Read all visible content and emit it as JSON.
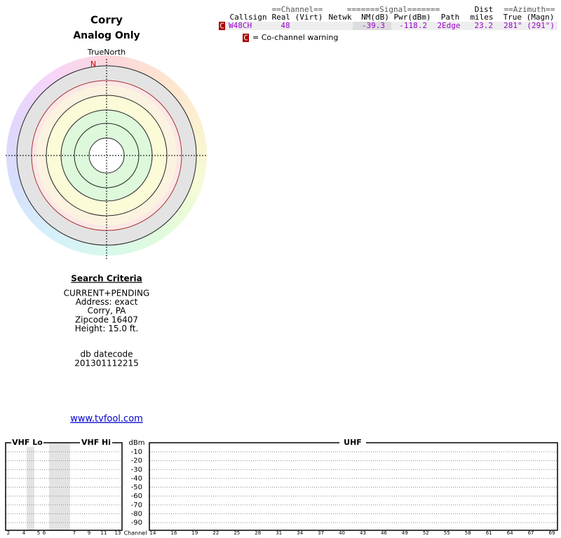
{
  "header": {
    "title": "Corry",
    "subtitle": "Analog Only"
  },
  "compass": {
    "label": "TrueNorth",
    "north": "N"
  },
  "table": {
    "group_headers": [
      "==Channel==",
      "=======Signal=======",
      "Dist",
      "==Azimuth=="
    ],
    "columns": [
      "Callsign",
      "Real (Virt)",
      "Netwk",
      "NM(dB)",
      "Pwr(dBm)",
      "Path",
      "miles",
      "True (Magn)"
    ],
    "rows": [
      {
        "flag": "C",
        "callsign": "W48CH",
        "real": 48,
        "nm": -39.3,
        "pwr": -118.2,
        "path": "2Edge",
        "dist": 23.2,
        "azimuth": "281° (291°)"
      }
    ]
  },
  "legend": {
    "flag": "C",
    "text": "= Co-channel warning"
  },
  "search": {
    "title": "Search Criteria",
    "lines": [
      "CURRENT+PENDING",
      "Address: exact",
      "Corry, PA",
      "Zipcode 16407",
      "Height: 15.0 ft."
    ],
    "datecode_label": "db datecode",
    "datecode": "201301112215"
  },
  "link": "www.tvfool.com",
  "spectrum": {
    "bands": [
      "VHF Lo",
      "VHF Hi",
      "UHF"
    ],
    "unit": "dBm",
    "yticks": [
      -10,
      -20,
      -30,
      -40,
      -50,
      -60,
      -70,
      -80,
      -90
    ],
    "x_label": "Channel",
    "vhf_channels": [
      2,
      4,
      5,
      6,
      7,
      9,
      11,
      13
    ],
    "uhf_channels": [
      14,
      16,
      19,
      22,
      25,
      28,
      31,
      34,
      37,
      40,
      43,
      46,
      49,
      52,
      55,
      58,
      61,
      64,
      67,
      69
    ]
  }
}
